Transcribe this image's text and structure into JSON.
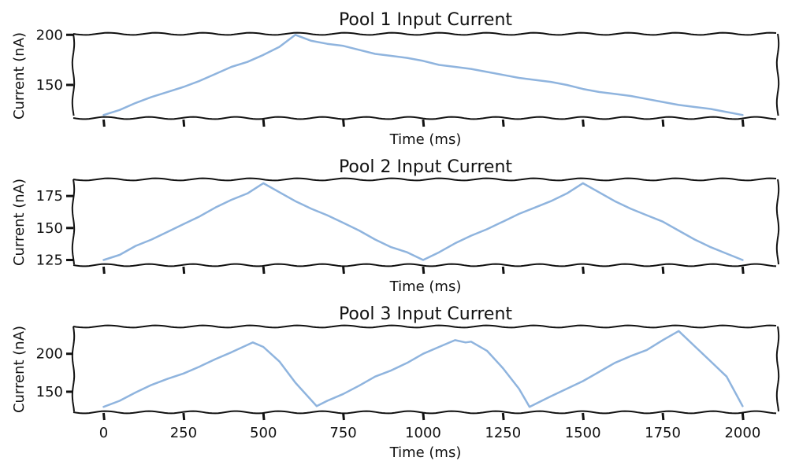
{
  "chart_data": [
    {
      "type": "line",
      "title": "Pool 1 Input Current",
      "xlabel": "Time (ms)",
      "ylabel": "Current (nA)",
      "xlim": [
        -95,
        2110
      ],
      "ylim": [
        117,
        201
      ],
      "x_ticks": [
        0,
        250,
        500,
        750,
        1000,
        1250,
        1500,
        1750,
        2000
      ],
      "x_tick_labels_shown": false,
      "y_ticks": [
        150,
        200
      ],
      "y_tick_labels": [
        "150",
        "200"
      ],
      "color": "#8fb4de",
      "grid": false,
      "series": [
        {
          "x": [
            0,
            50,
            100,
            150,
            200,
            250,
            300,
            350,
            400,
            450,
            500,
            550,
            600,
            650,
            700,
            750,
            800,
            850,
            900,
            950,
            1000,
            1050,
            1100,
            1150,
            1200,
            1250,
            1300,
            1350,
            1400,
            1450,
            1500,
            1550,
            1600,
            1650,
            1700,
            1750,
            1800,
            1850,
            1900,
            1950,
            2000
          ],
          "y": [
            120,
            125,
            132,
            138,
            143,
            148,
            154,
            161,
            168,
            173,
            180,
            188,
            200,
            194,
            191,
            189,
            185,
            181,
            179,
            177,
            174,
            170,
            168,
            166,
            163,
            160,
            157,
            155,
            153,
            150,
            146,
            143,
            141,
            139,
            136,
            133,
            130,
            128,
            126,
            123,
            120
          ]
        }
      ]
    },
    {
      "type": "line",
      "title": "Pool 2 Input Current",
      "xlabel": "Time (ms)",
      "ylabel": "Current (nA)",
      "xlim": [
        -95,
        2110
      ],
      "ylim": [
        121,
        188
      ],
      "x_ticks": [
        0,
        250,
        500,
        750,
        1000,
        1250,
        1500,
        1750,
        2000
      ],
      "x_tick_labels_shown": false,
      "y_ticks": [
        125,
        150,
        175
      ],
      "y_tick_labels": [
        "125",
        "150",
        "175"
      ],
      "color": "#8fb4de",
      "grid": false,
      "series": [
        {
          "x": [
            0,
            50,
            100,
            150,
            200,
            250,
            300,
            350,
            400,
            450,
            500,
            550,
            600,
            650,
            700,
            750,
            800,
            850,
            900,
            950,
            1000,
            1050,
            1100,
            1150,
            1200,
            1250,
            1300,
            1350,
            1400,
            1450,
            1500,
            1550,
            1600,
            1650,
            1700,
            1750,
            1800,
            1850,
            1900,
            1950,
            2000
          ],
          "y": [
            125,
            129,
            136,
            141,
            147,
            153,
            159,
            166,
            172,
            177,
            185,
            178,
            171,
            165,
            160,
            154,
            148,
            141,
            135,
            131,
            125,
            131,
            138,
            144,
            149,
            155,
            161,
            166,
            171,
            177,
            185,
            178,
            171,
            165,
            160,
            155,
            148,
            141,
            135,
            130,
            125
          ]
        }
      ]
    },
    {
      "type": "line",
      "title": "Pool 3 Input Current",
      "xlabel": "Time (ms)",
      "ylabel": "Current (nA)",
      "xlim": [
        -95,
        2110
      ],
      "ylim": [
        123,
        236
      ],
      "x_ticks": [
        0,
        250,
        500,
        750,
        1000,
        1250,
        1500,
        1750,
        2000
      ],
      "x_tick_labels_shown": true,
      "x_tick_labels": [
        "0",
        "250",
        "500",
        "750",
        "1000",
        "1250",
        "1500",
        "1750",
        "2000"
      ],
      "y_ticks": [
        150,
        200
      ],
      "y_tick_labels": [
        "150",
        "200"
      ],
      "color": "#8fb4de",
      "grid": false,
      "series": [
        {
          "x": [
            0,
            50,
            100,
            150,
            200,
            250,
            300,
            350,
            400,
            467,
            500,
            550,
            600,
            667,
            700,
            750,
            800,
            850,
            900,
            950,
            1000,
            1050,
            1100,
            1133,
            1150,
            1200,
            1250,
            1300,
            1333,
            1400,
            1450,
            1500,
            1550,
            1600,
            1650,
            1700,
            1750,
            1800,
            1850,
            1900,
            1950,
            2000
          ],
          "y": [
            130,
            138,
            149,
            159,
            167,
            174,
            183,
            193,
            202,
            215,
            209,
            190,
            162,
            131,
            138,
            147,
            158,
            170,
            178,
            188,
            200,
            209,
            218,
            215,
            216,
            204,
            181,
            154,
            130,
            144,
            154,
            164,
            176,
            188,
            197,
            205,
            218,
            230,
            210,
            190,
            170,
            131
          ]
        }
      ]
    }
  ]
}
